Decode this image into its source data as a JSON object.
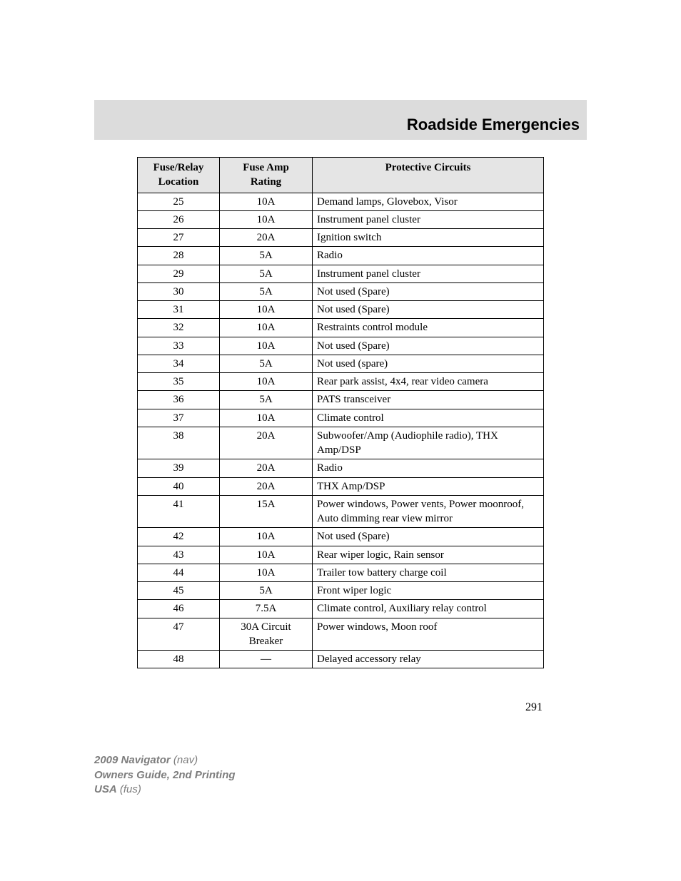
{
  "header": {
    "section_title": "Roadside Emergencies"
  },
  "table": {
    "columns": [
      {
        "label_line1": "Fuse/Relay",
        "label_line2": "Location"
      },
      {
        "label_line1": "Fuse Amp",
        "label_line2": "Rating"
      },
      {
        "label_line1": "Protective Circuits",
        "label_line2": ""
      }
    ],
    "rows": [
      {
        "loc": "25",
        "amp": "10A",
        "desc": "Demand lamps, Glovebox, Visor"
      },
      {
        "loc": "26",
        "amp": "10A",
        "desc": "Instrument panel cluster"
      },
      {
        "loc": "27",
        "amp": "20A",
        "desc": "Ignition switch"
      },
      {
        "loc": "28",
        "amp": "5A",
        "desc": "Radio"
      },
      {
        "loc": "29",
        "amp": "5A",
        "desc": "Instrument panel cluster"
      },
      {
        "loc": "30",
        "amp": "5A",
        "desc": "Not used (Spare)"
      },
      {
        "loc": "31",
        "amp": "10A",
        "desc": "Not used (Spare)"
      },
      {
        "loc": "32",
        "amp": "10A",
        "desc": "Restraints control module"
      },
      {
        "loc": "33",
        "amp": "10A",
        "desc": "Not used (Spare)"
      },
      {
        "loc": "34",
        "amp": "5A",
        "desc": "Not used (spare)"
      },
      {
        "loc": "35",
        "amp": "10A",
        "desc": "Rear park assist, 4x4, rear video camera"
      },
      {
        "loc": "36",
        "amp": "5A",
        "desc": "PATS transceiver"
      },
      {
        "loc": "37",
        "amp": "10A",
        "desc": "Climate control"
      },
      {
        "loc": "38",
        "amp": "20A",
        "desc": "Subwoofer/Amp (Audiophile radio), THX Amp/DSP"
      },
      {
        "loc": "39",
        "amp": "20A",
        "desc": "Radio"
      },
      {
        "loc": "40",
        "amp": "20A",
        "desc": "THX Amp/DSP"
      },
      {
        "loc": "41",
        "amp": "15A",
        "desc": "Power windows, Power vents, Power moonroof, Auto dimming rear view mirror"
      },
      {
        "loc": "42",
        "amp": "10A",
        "desc": "Not used (Spare)"
      },
      {
        "loc": "43",
        "amp": "10A",
        "desc": "Rear wiper logic, Rain sensor"
      },
      {
        "loc": "44",
        "amp": "10A",
        "desc": "Trailer tow battery charge coil"
      },
      {
        "loc": "45",
        "amp": "5A",
        "desc": "Front wiper logic"
      },
      {
        "loc": "46",
        "amp": "7.5A",
        "desc": "Climate control, Auxiliary relay control"
      },
      {
        "loc": "47",
        "amp": "30A Circuit Breaker",
        "desc": "Power windows, Moon roof"
      },
      {
        "loc": "48",
        "amp": "—",
        "desc": "Delayed accessory relay"
      }
    ]
  },
  "page_number": "291",
  "footer": {
    "line1_bold": "2009 Navigator",
    "line1_italic": "(nav)",
    "line2_bold": "Owners Guide, 2nd Printing",
    "line3_bold": "USA",
    "line3_italic": "(fus)"
  }
}
